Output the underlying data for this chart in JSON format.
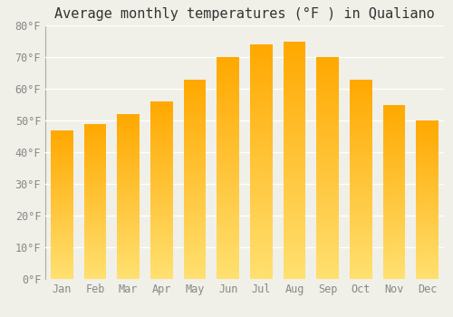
{
  "title": "Average monthly temperatures (°F ) in Qualiano",
  "months": [
    "Jan",
    "Feb",
    "Mar",
    "Apr",
    "May",
    "Jun",
    "Jul",
    "Aug",
    "Sep",
    "Oct",
    "Nov",
    "Dec"
  ],
  "values": [
    47,
    49,
    52,
    56,
    63,
    70,
    74,
    75,
    70,
    63,
    55,
    50
  ],
  "bar_color_top": "#FFA800",
  "bar_color_bottom": "#FFE070",
  "ylim": [
    0,
    80
  ],
  "yticks": [
    0,
    10,
    20,
    30,
    40,
    50,
    60,
    70,
    80
  ],
  "ytick_labels": [
    "0°F",
    "10°F",
    "20°F",
    "30°F",
    "40°F",
    "50°F",
    "60°F",
    "70°F",
    "80°F"
  ],
  "background_color": "#F0F0E8",
  "grid_color": "#FFFFFF",
  "title_fontsize": 11,
  "tick_fontsize": 8.5,
  "bar_width": 0.68
}
